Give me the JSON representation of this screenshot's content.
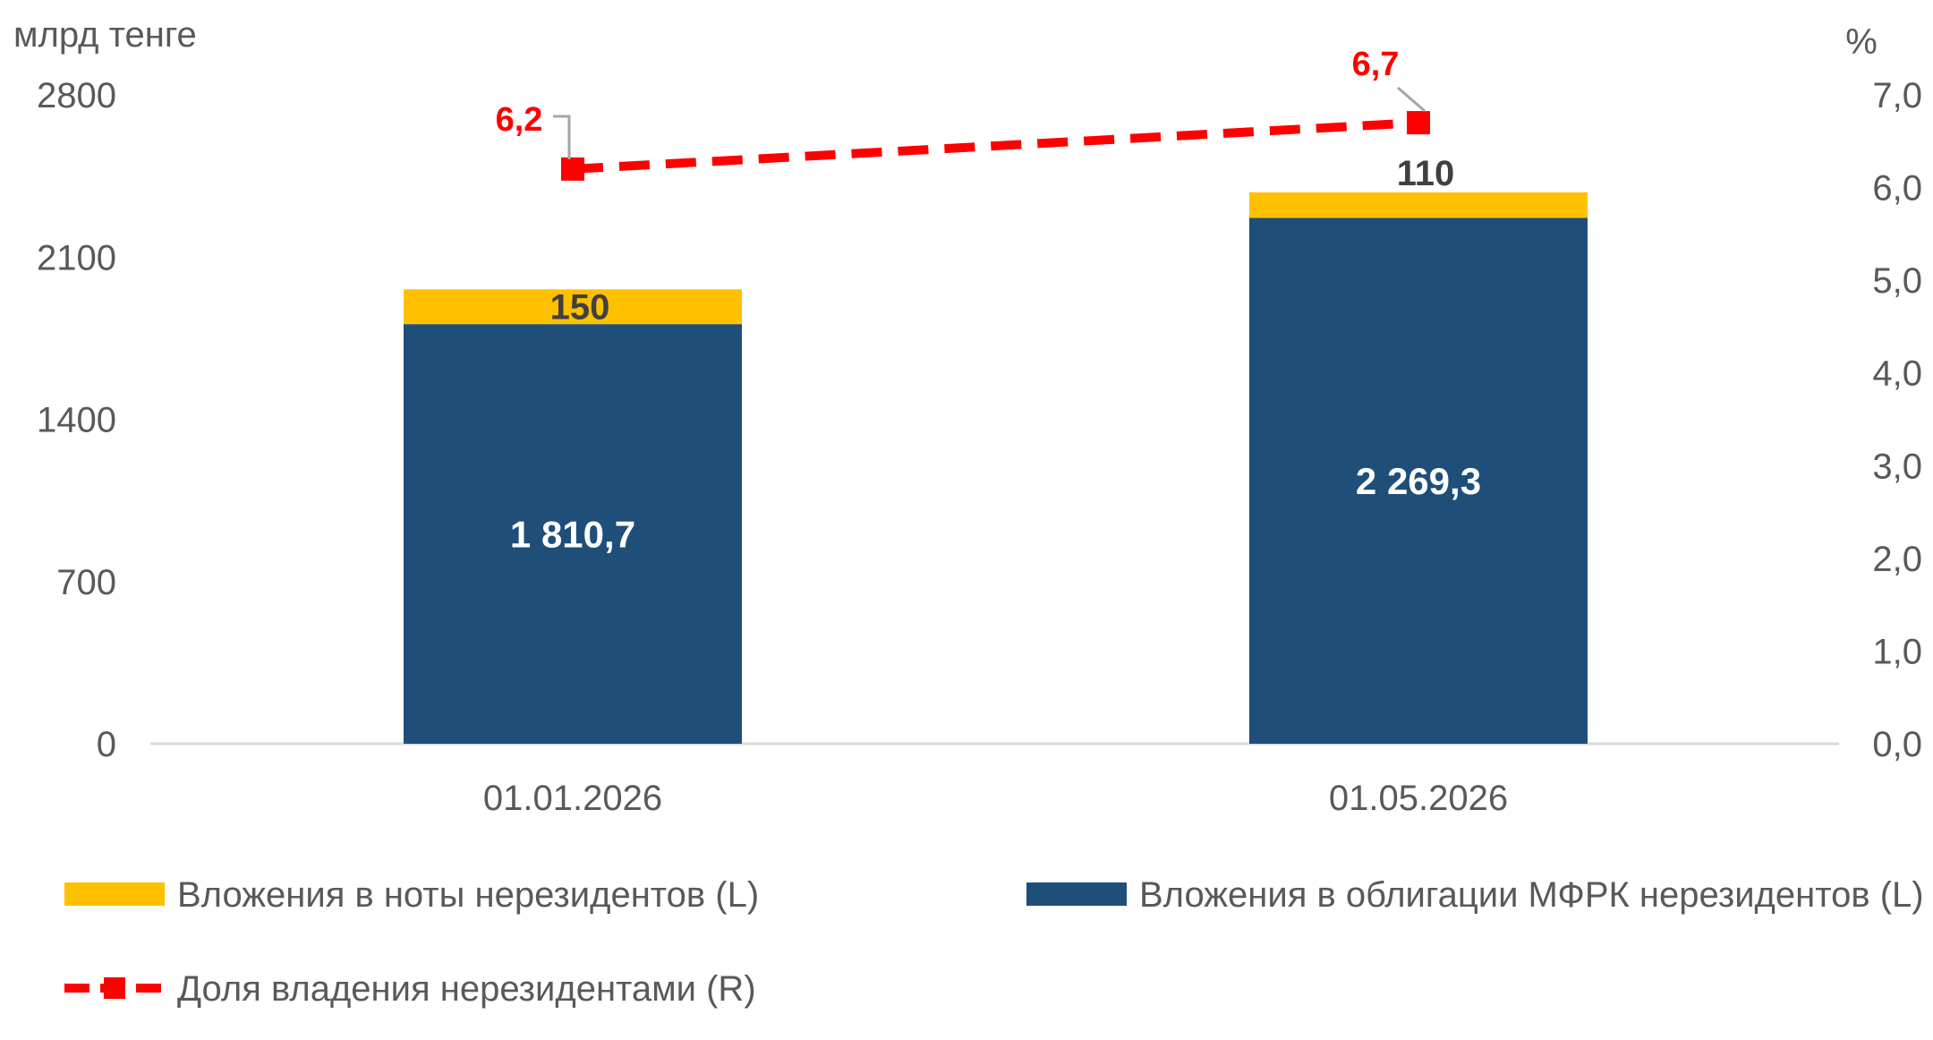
{
  "chart_data": {
    "type": "bar",
    "stacked": true,
    "left_axis_unit": "млрд тенге",
    "right_axis_unit": "%",
    "categories": [
      "01.01.2026",
      "01.05.2026"
    ],
    "left_ticks": [
      "0",
      "700",
      "1400",
      "2100",
      "2800"
    ],
    "right_ticks": [
      "0,0",
      "1,0",
      "2,0",
      "3,0",
      "4,0",
      "5,0",
      "6,0",
      "7,0"
    ],
    "ylim_left": [
      0,
      2800
    ],
    "ylim_right": [
      0,
      7
    ],
    "grid": false,
    "legend_position": "bottom",
    "series": [
      {
        "name": "Вложения в облигации МФРК нерезидентов (L)",
        "type": "bar",
        "axis": "left",
        "color": "#1F4E79",
        "values": [
          1810.7,
          2269.3
        ],
        "labels": [
          "1 810,7",
          "2 269,3"
        ]
      },
      {
        "name": "Вложения в ноты нерезидентов (L)",
        "type": "bar",
        "axis": "left",
        "color": "#FFC000",
        "values": [
          150,
          110
        ],
        "labels": [
          "150",
          "110"
        ]
      },
      {
        "name": "Доля владения нерезидентами (R)",
        "type": "line",
        "axis": "right",
        "style": "dashed",
        "marker": "square",
        "color": "#FF0000",
        "values": [
          6.2,
          6.7
        ],
        "labels": [
          "6,2",
          "6,7"
        ]
      }
    ],
    "legend": [
      "Вложения в ноты нерезидентов (L)",
      "Вложения в облигации МФРК нерезидентов (L)",
      "Доля владения нерезидентами (R)"
    ]
  }
}
